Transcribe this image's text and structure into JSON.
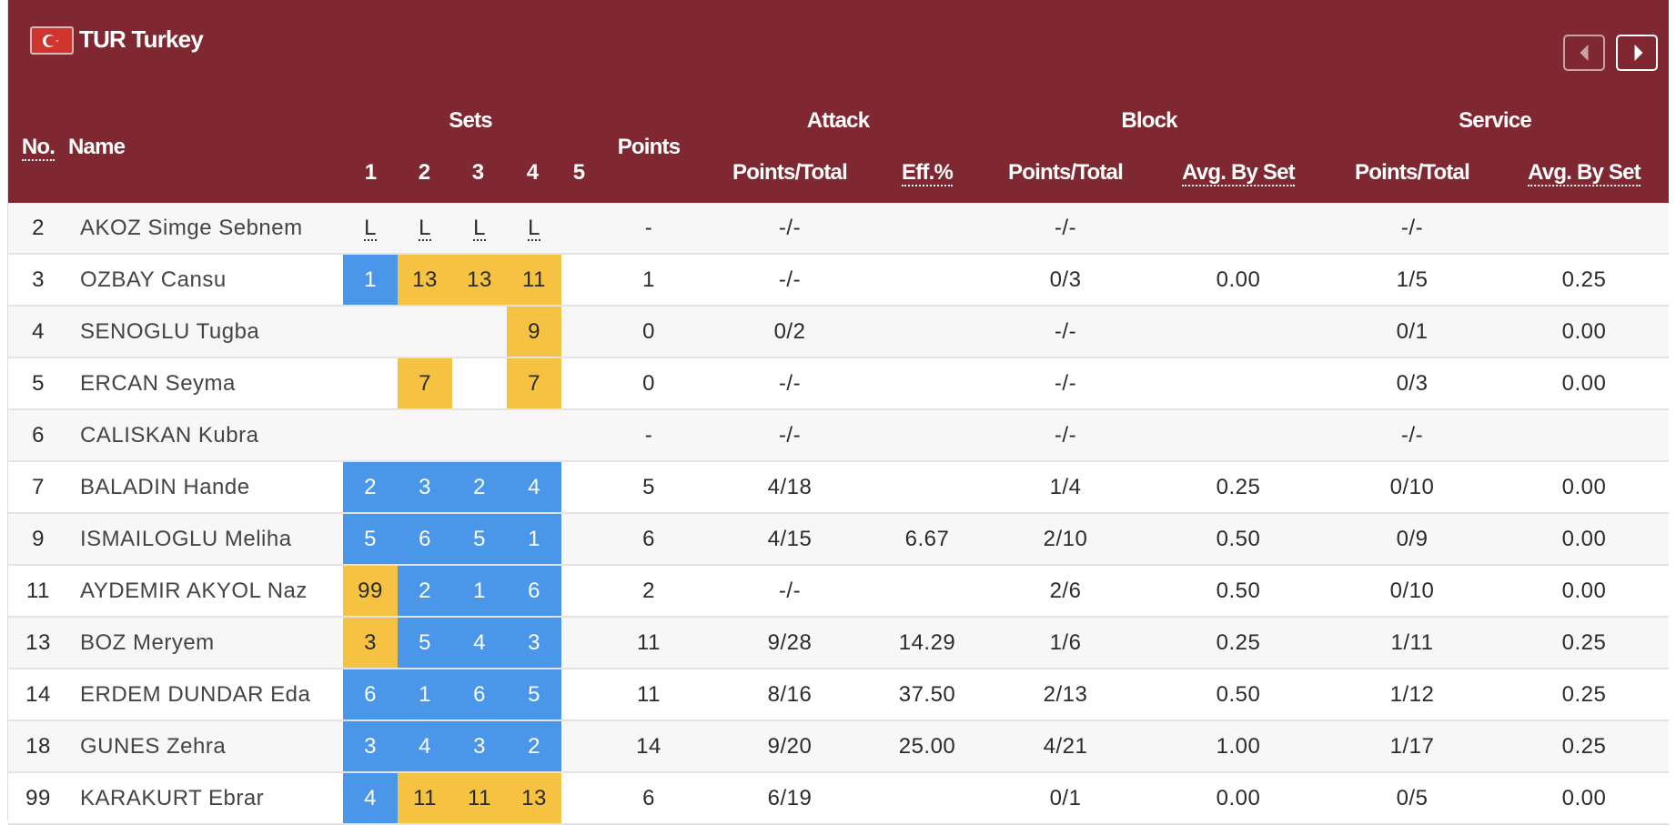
{
  "team": {
    "code_name": "TUR Turkey",
    "flag": "turkey-flag"
  },
  "nav": {
    "prev": "chevron-left-icon",
    "next": "chevron-right-icon"
  },
  "colors": {
    "header": "#7f2832",
    "set_blue": "#4a96e8",
    "set_yellow": "#f5c242"
  },
  "headers": {
    "no": "No.",
    "name": "Name",
    "sets": "Sets",
    "set_numbers": [
      "1",
      "2",
      "3",
      "4",
      "5"
    ],
    "points": "Points",
    "attack": "Attack",
    "attack_pt": "Points/Total",
    "attack_eff": "Eff.%",
    "block": "Block",
    "block_pt": "Points/Total",
    "block_avg": "Avg. By Set",
    "service": "Service",
    "service_pt": "Points/Total",
    "service_avg": "Avg. By Set"
  },
  "players": [
    {
      "no": "2",
      "name": "AKOZ Simge Sebnem",
      "sets": [
        {
          "v": "L",
          "c": "libero"
        },
        {
          "v": "L",
          "c": "libero"
        },
        {
          "v": "L",
          "c": "libero"
        },
        {
          "v": "L",
          "c": "libero"
        },
        {
          "v": "",
          "c": ""
        }
      ],
      "points": "-",
      "att_pt": "-/-",
      "att_eff": "",
      "blk_pt": "-/-",
      "blk_avg": "",
      "srv_pt": "-/-",
      "srv_avg": ""
    },
    {
      "no": "3",
      "name": "OZBAY Cansu",
      "sets": [
        {
          "v": "1",
          "c": "blue"
        },
        {
          "v": "13",
          "c": "yellow"
        },
        {
          "v": "13",
          "c": "yellow"
        },
        {
          "v": "11",
          "c": "yellow"
        },
        {
          "v": "",
          "c": ""
        }
      ],
      "points": "1",
      "att_pt": "-/-",
      "att_eff": "",
      "blk_pt": "0/3",
      "blk_avg": "0.00",
      "srv_pt": "1/5",
      "srv_avg": "0.25"
    },
    {
      "no": "4",
      "name": "SENOGLU Tugba",
      "sets": [
        {
          "v": "",
          "c": ""
        },
        {
          "v": "",
          "c": ""
        },
        {
          "v": "",
          "c": ""
        },
        {
          "v": "9",
          "c": "yellow"
        },
        {
          "v": "",
          "c": ""
        }
      ],
      "points": "0",
      "att_pt": "0/2",
      "att_eff": "",
      "blk_pt": "-/-",
      "blk_avg": "",
      "srv_pt": "0/1",
      "srv_avg": "0.00"
    },
    {
      "no": "5",
      "name": "ERCAN Seyma",
      "sets": [
        {
          "v": "",
          "c": ""
        },
        {
          "v": "7",
          "c": "yellow"
        },
        {
          "v": "",
          "c": ""
        },
        {
          "v": "7",
          "c": "yellow"
        },
        {
          "v": "",
          "c": ""
        }
      ],
      "points": "0",
      "att_pt": "-/-",
      "att_eff": "",
      "blk_pt": "-/-",
      "blk_avg": "",
      "srv_pt": "0/3",
      "srv_avg": "0.00"
    },
    {
      "no": "6",
      "name": "CALISKAN Kubra",
      "sets": [
        {
          "v": "",
          "c": ""
        },
        {
          "v": "",
          "c": ""
        },
        {
          "v": "",
          "c": ""
        },
        {
          "v": "",
          "c": ""
        },
        {
          "v": "",
          "c": ""
        }
      ],
      "points": "-",
      "att_pt": "-/-",
      "att_eff": "",
      "blk_pt": "-/-",
      "blk_avg": "",
      "srv_pt": "-/-",
      "srv_avg": ""
    },
    {
      "no": "7",
      "name": "BALADIN Hande",
      "sets": [
        {
          "v": "2",
          "c": "blue"
        },
        {
          "v": "3",
          "c": "blue"
        },
        {
          "v": "2",
          "c": "blue"
        },
        {
          "v": "4",
          "c": "blue"
        },
        {
          "v": "",
          "c": ""
        }
      ],
      "points": "5",
      "att_pt": "4/18",
      "att_eff": "",
      "blk_pt": "1/4",
      "blk_avg": "0.25",
      "srv_pt": "0/10",
      "srv_avg": "0.00"
    },
    {
      "no": "9",
      "name": "ISMAILOGLU Meliha",
      "sets": [
        {
          "v": "5",
          "c": "blue"
        },
        {
          "v": "6",
          "c": "blue"
        },
        {
          "v": "5",
          "c": "blue"
        },
        {
          "v": "1",
          "c": "blue"
        },
        {
          "v": "",
          "c": ""
        }
      ],
      "points": "6",
      "att_pt": "4/15",
      "att_eff": "6.67",
      "blk_pt": "2/10",
      "blk_avg": "0.50",
      "srv_pt": "0/9",
      "srv_avg": "0.00"
    },
    {
      "no": "11",
      "name": "AYDEMIR AKYOL Naz",
      "sets": [
        {
          "v": "99",
          "c": "yellow"
        },
        {
          "v": "2",
          "c": "blue"
        },
        {
          "v": "1",
          "c": "blue"
        },
        {
          "v": "6",
          "c": "blue"
        },
        {
          "v": "",
          "c": ""
        }
      ],
      "points": "2",
      "att_pt": "-/-",
      "att_eff": "",
      "blk_pt": "2/6",
      "blk_avg": "0.50",
      "srv_pt": "0/10",
      "srv_avg": "0.00"
    },
    {
      "no": "13",
      "name": "BOZ Meryem",
      "sets": [
        {
          "v": "3",
          "c": "yellow"
        },
        {
          "v": "5",
          "c": "blue"
        },
        {
          "v": "4",
          "c": "blue"
        },
        {
          "v": "3",
          "c": "blue"
        },
        {
          "v": "",
          "c": ""
        }
      ],
      "points": "11",
      "att_pt": "9/28",
      "att_eff": "14.29",
      "blk_pt": "1/6",
      "blk_avg": "0.25",
      "srv_pt": "1/11",
      "srv_avg": "0.25"
    },
    {
      "no": "14",
      "name": "ERDEM DUNDAR Eda",
      "sets": [
        {
          "v": "6",
          "c": "blue"
        },
        {
          "v": "1",
          "c": "blue"
        },
        {
          "v": "6",
          "c": "blue"
        },
        {
          "v": "5",
          "c": "blue"
        },
        {
          "v": "",
          "c": ""
        }
      ],
      "points": "11",
      "att_pt": "8/16",
      "att_eff": "37.50",
      "blk_pt": "2/13",
      "blk_avg": "0.50",
      "srv_pt": "1/12",
      "srv_avg": "0.25"
    },
    {
      "no": "18",
      "name": "GUNES Zehra",
      "sets": [
        {
          "v": "3",
          "c": "blue"
        },
        {
          "v": "4",
          "c": "blue"
        },
        {
          "v": "3",
          "c": "blue"
        },
        {
          "v": "2",
          "c": "blue"
        },
        {
          "v": "",
          "c": ""
        }
      ],
      "points": "14",
      "att_pt": "9/20",
      "att_eff": "25.00",
      "blk_pt": "4/21",
      "blk_avg": "1.00",
      "srv_pt": "1/17",
      "srv_avg": "0.25"
    },
    {
      "no": "99",
      "name": "KARAKURT Ebrar",
      "sets": [
        {
          "v": "4",
          "c": "blue"
        },
        {
          "v": "11",
          "c": "yellow"
        },
        {
          "v": "11",
          "c": "yellow"
        },
        {
          "v": "13",
          "c": "yellow"
        },
        {
          "v": "",
          "c": ""
        }
      ],
      "points": "6",
      "att_pt": "6/19",
      "att_eff": "",
      "blk_pt": "0/1",
      "blk_avg": "0.00",
      "srv_pt": "0/5",
      "srv_avg": "0.00"
    }
  ]
}
